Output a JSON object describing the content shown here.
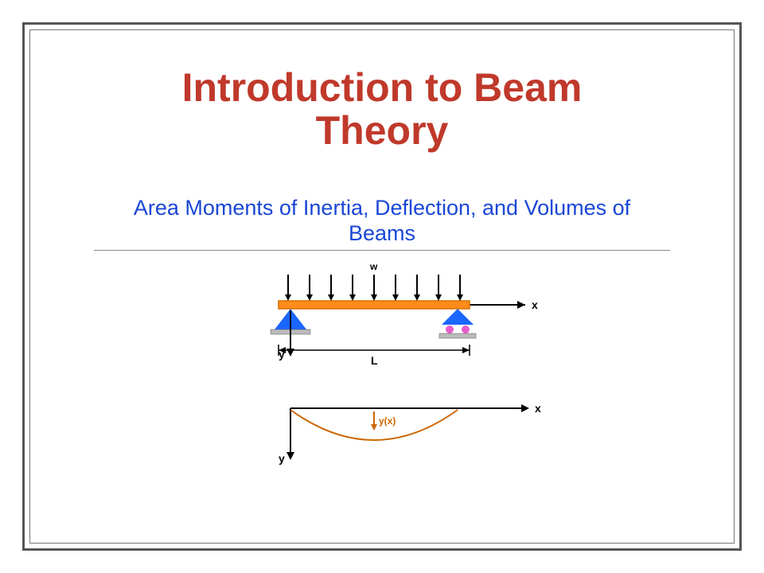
{
  "title_line1": "Introduction to Beam",
  "title_line2": "Theory",
  "title_color": "#c0392b",
  "subtitle_line1": "Area Moments of Inertia, Deflection, and Volumes of",
  "subtitle_line2": "Beams",
  "subtitle_color": "#1a47d6",
  "beam_diagram": {
    "load_label": "w",
    "x_axis_label": "x",
    "y_axis_label": "y",
    "length_label": "L",
    "deflection_label": "y(x)",
    "beam_color": "#ff8c1a",
    "beam_border": "#d97000",
    "support_blue": "#1a66ff",
    "roller_pink": "#e65ccc",
    "base_gray": "#bbbbbb",
    "axis_color": "#000000",
    "load_arrow_color": "#000000",
    "deflection_curve_color": "#cc6600",
    "deflection_label_color": "#cc6600",
    "label_color": "#000000",
    "label_fontsize": 12,
    "label_fontweight": "bold"
  }
}
